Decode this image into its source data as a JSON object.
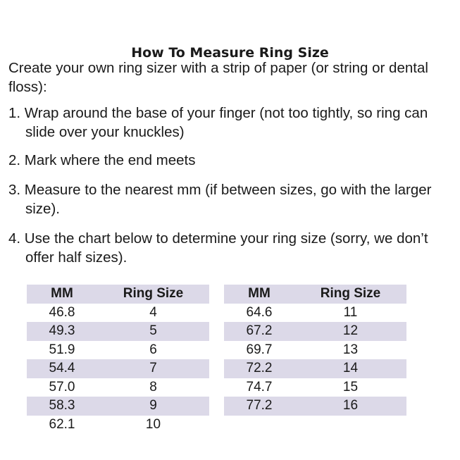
{
  "title": "How To Measure Ring Size",
  "intro": "Create your own ring sizer with a strip of paper (or string or dental floss):",
  "steps": [
    "1. Wrap around the base of your finger (not too tightly, so ring can slide over your knuckles)",
    "2. Mark where the end meets",
    "3. Measure to the nearest mm (if between sizes, go with the larger size).",
    "4. Use the chart below to determine your ring size (sorry, we don’t offer half sizes)."
  ],
  "table": {
    "headers": [
      "MM",
      "Ring Size"
    ],
    "left": [
      [
        "46.8",
        "4"
      ],
      [
        "49.3",
        "5"
      ],
      [
        "51.9",
        "6"
      ],
      [
        "54.4",
        "7"
      ],
      [
        "57.0",
        "8"
      ],
      [
        "58.3",
        "9"
      ],
      [
        "62.1",
        "10"
      ]
    ],
    "right": [
      [
        "64.6",
        "11"
      ],
      [
        "67.2",
        "12"
      ],
      [
        "69.7",
        "13"
      ],
      [
        "72.2",
        "14"
      ],
      [
        "74.7",
        "15"
      ],
      [
        "77.2",
        "16"
      ]
    ]
  },
  "colors": {
    "stripe": "#dcd9e8"
  }
}
